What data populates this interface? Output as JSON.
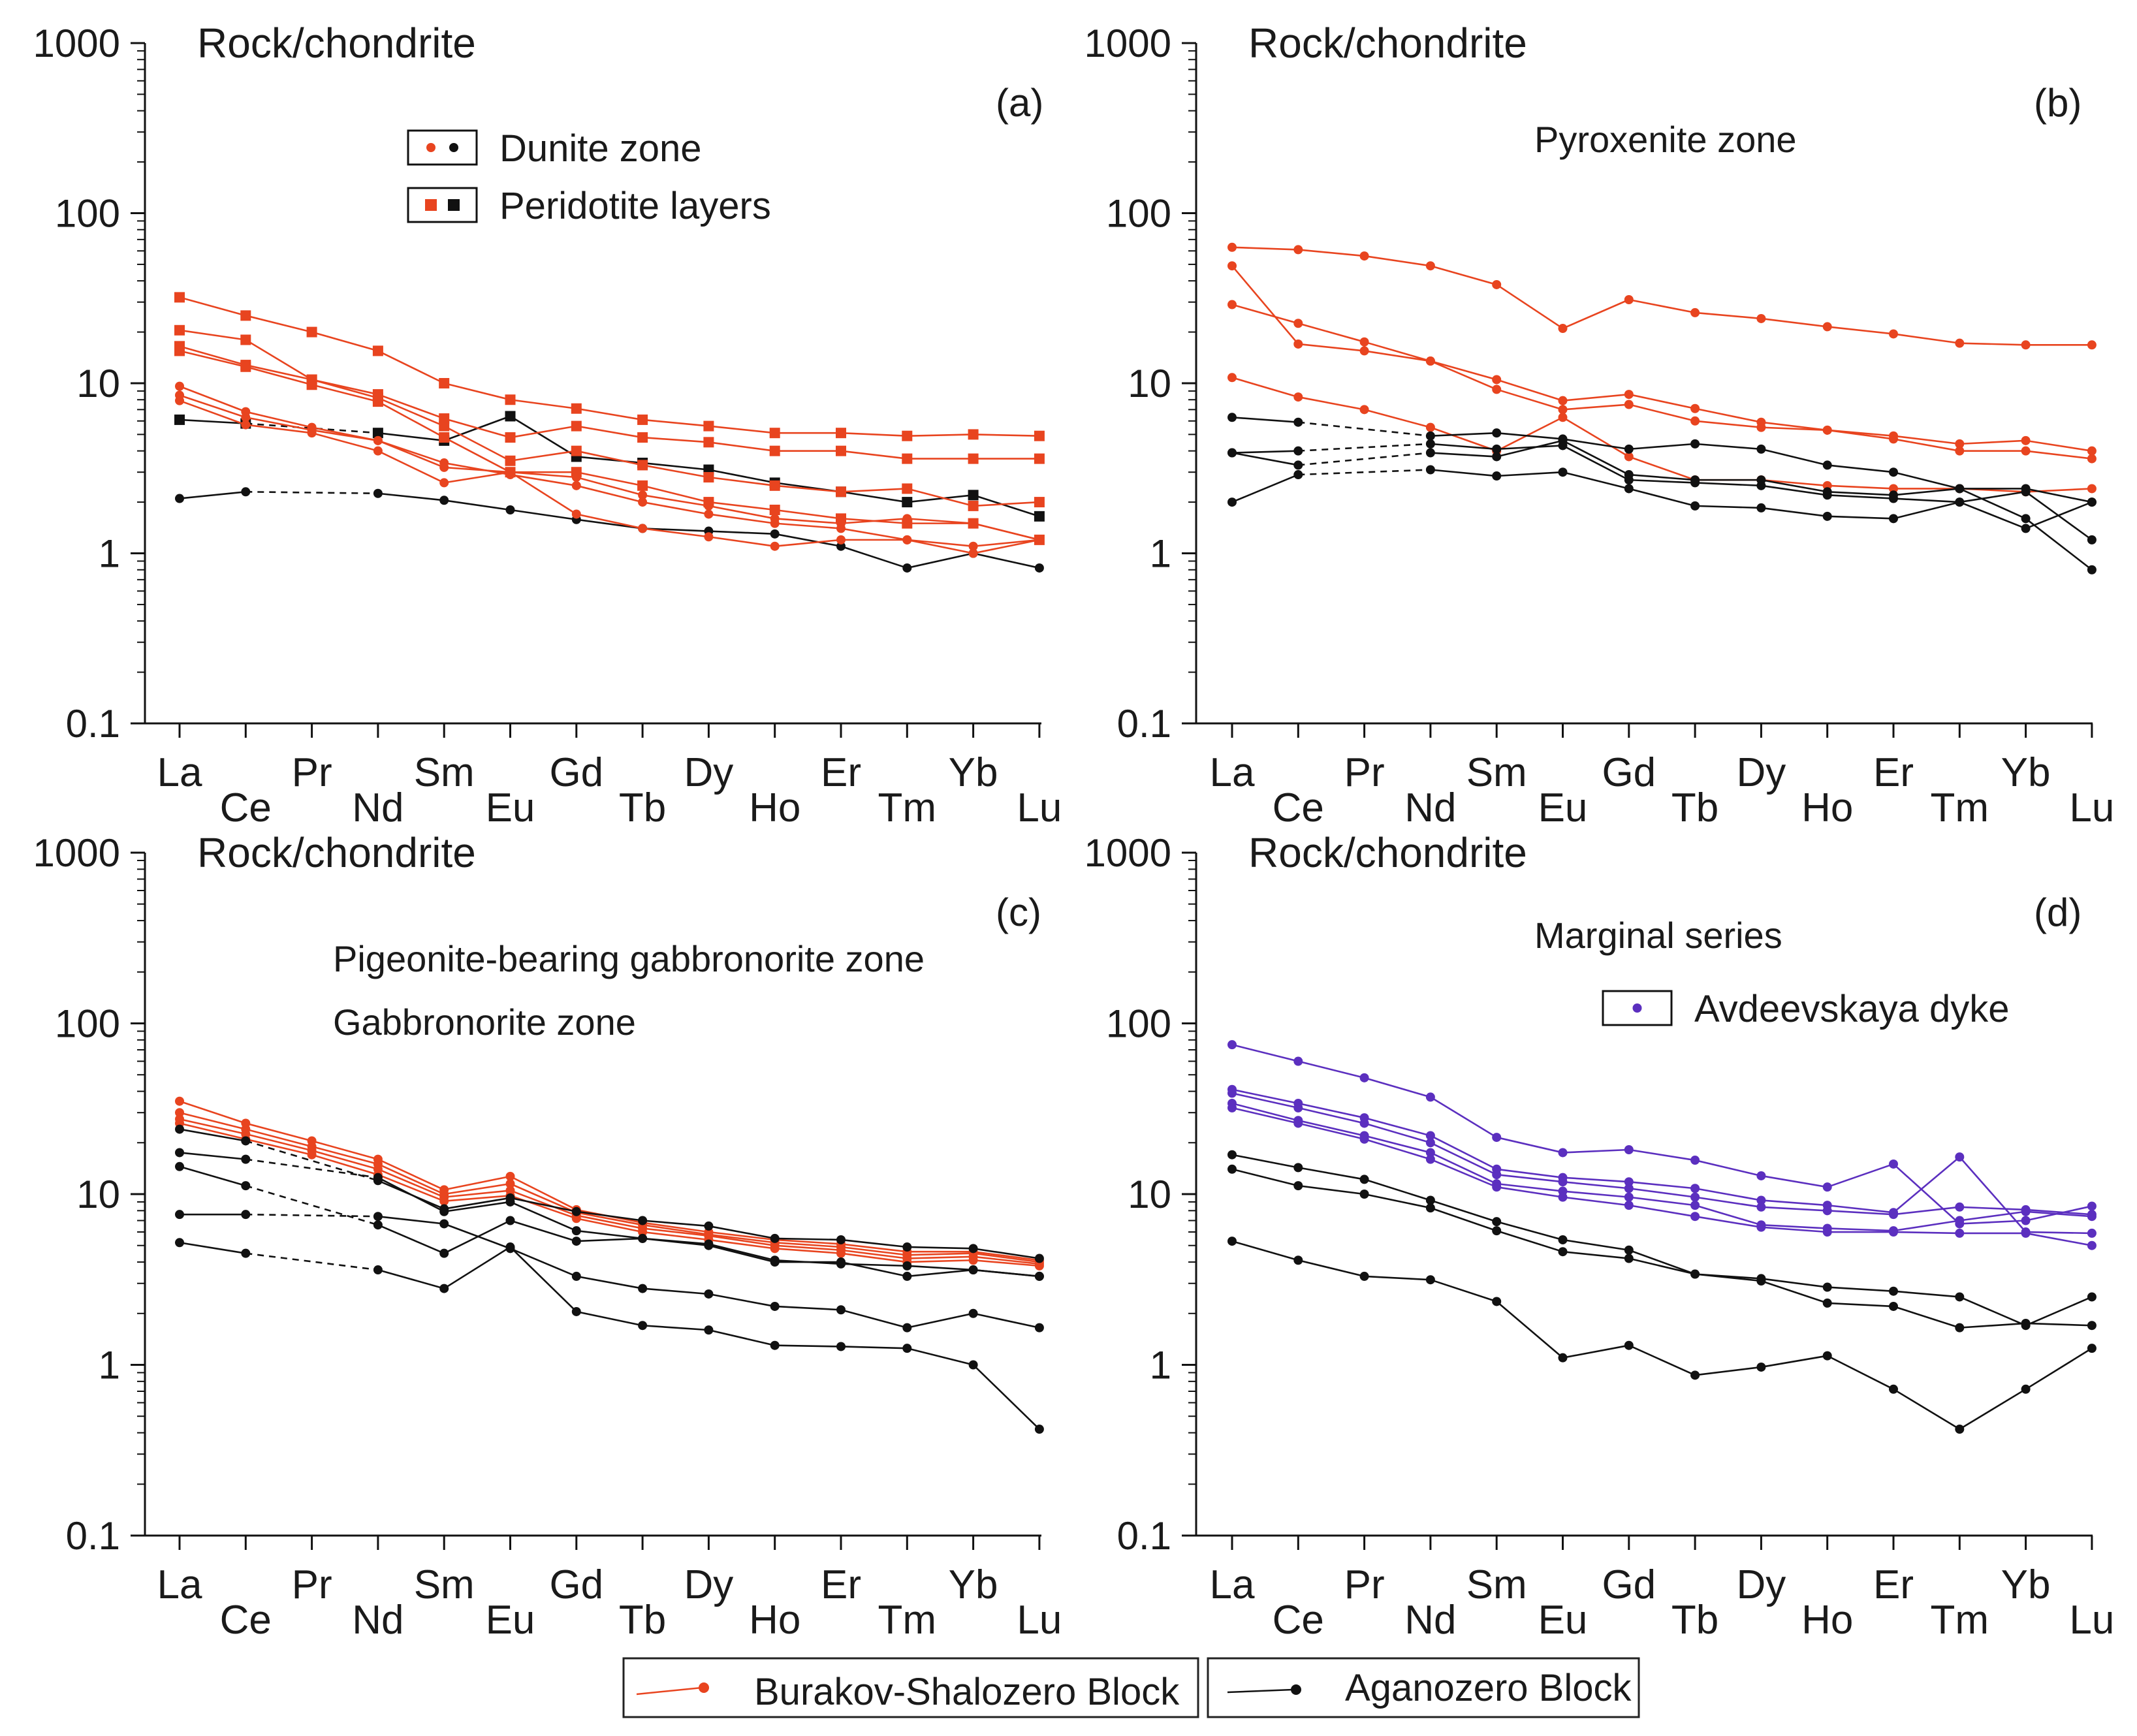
{
  "colors": {
    "burakov": "#e8441f",
    "aganozero": "#111111",
    "avdeevskaya": "#5b2fbf"
  },
  "bottom_legend": {
    "burakov": {
      "label": "Burakov-Shalozero Block",
      "color": "#e8441f"
    },
    "aganozero": {
      "label": "Aganozero Block",
      "color": "#111111"
    }
  },
  "chart_data": [
    {
      "id": "a",
      "type": "line",
      "yscale": "log",
      "ylim": [
        0.1,
        1000
      ],
      "yticks": [
        "0.1",
        "1",
        "10",
        "100",
        "1000"
      ],
      "ylabel": "Rock/chondrite",
      "panel_label": "(a)",
      "categories": [
        "La",
        "Ce",
        "Pr",
        "Nd",
        "Sm",
        "Eu",
        "Gd",
        "Tb",
        "Dy",
        "Ho",
        "Er",
        "Tm",
        "Yb",
        "Lu"
      ],
      "annotations": [],
      "legend": [
        {
          "label": "Dunite zone",
          "marker": "circle",
          "colors": [
            "#e8441f",
            "#111111"
          ]
        },
        {
          "label": "Peridotite layers",
          "marker": "square",
          "colors": [
            "#e8441f",
            "#111111"
          ]
        }
      ],
      "series": [
        {
          "block": "aganozero",
          "marker": "circle",
          "values": [
            2.1,
            2.3,
            null,
            2.25,
            2.05,
            1.8,
            1.58,
            1.4,
            1.35,
            1.3,
            1.1,
            0.82,
            1.0,
            0.82
          ]
        },
        {
          "block": "aganozero",
          "marker": "square",
          "values": [
            6.1,
            5.8,
            null,
            5.1,
            4.6,
            6.4,
            3.7,
            3.4,
            3.1,
            2.6,
            2.3,
            2.0,
            2.2,
            1.65
          ]
        },
        {
          "block": "burakov",
          "marker": "square",
          "values": [
            32,
            25,
            20,
            15.5,
            10,
            8,
            7.1,
            6.1,
            5.6,
            5.1,
            5.1,
            4.9,
            5.0,
            4.9
          ]
        },
        {
          "block": "burakov",
          "marker": "square",
          "values": [
            20.5,
            18,
            10.5,
            8.6,
            6.2,
            4.8,
            5.6,
            4.8,
            4.5,
            4.0,
            4.0,
            3.6,
            3.6,
            3.6
          ]
        },
        {
          "block": "burakov",
          "marker": "square",
          "values": [
            16.5,
            12.8,
            10.5,
            8.2,
            5.6,
            3.5,
            4.0,
            3.3,
            2.8,
            2.5,
            2.3,
            2.4,
            1.9,
            2.0
          ]
        },
        {
          "block": "burakov",
          "marker": "square",
          "values": [
            15.5,
            12.5,
            9.8,
            7.8,
            4.8,
            3.0,
            3.0,
            2.5,
            2.0,
            1.8,
            1.6,
            1.5,
            1.5,
            1.2
          ]
        },
        {
          "block": "burakov",
          "marker": "circle",
          "values": [
            9.6,
            6.8,
            5.5,
            4.6,
            3.2,
            3.0,
            2.8,
            2.2,
            1.9,
            1.6,
            1.5,
            1.6,
            1.5,
            1.2
          ]
        },
        {
          "block": "burakov",
          "marker": "circle",
          "values": [
            8.5,
            6.3,
            5.3,
            4.6,
            3.4,
            2.9,
            2.5,
            2.0,
            1.7,
            1.5,
            1.4,
            1.2,
            1.1,
            1.2
          ]
        },
        {
          "block": "burakov",
          "marker": "circle",
          "values": [
            7.9,
            5.7,
            5.1,
            4.0,
            2.6,
            3.0,
            1.7,
            1.4,
            1.25,
            1.1,
            1.2,
            1.2,
            1.0,
            1.2
          ]
        }
      ]
    },
    {
      "id": "b",
      "type": "line",
      "yscale": "log",
      "ylim": [
        0.1,
        1000
      ],
      "yticks": [
        "0.1",
        "1",
        "10",
        "100",
        "1000"
      ],
      "ylabel": "Rock/chondrite",
      "panel_label": "(b)",
      "categories": [
        "La",
        "Ce",
        "Pr",
        "Nd",
        "Sm",
        "Eu",
        "Gd",
        "Tb",
        "Dy",
        "Ho",
        "Er",
        "Tm",
        "Yb",
        "Lu"
      ],
      "annotations": [
        "Pyroxenite zone"
      ],
      "legend": [],
      "series": [
        {
          "block": "burakov",
          "marker": "circle",
          "values": [
            63,
            61,
            56,
            49,
            38,
            21,
            31,
            26,
            24,
            21.5,
            19.5,
            17.2,
            16.8,
            16.8
          ]
        },
        {
          "block": "burakov",
          "marker": "circle",
          "values": [
            49,
            17,
            15.5,
            13.5,
            10.5,
            7.9,
            8.6,
            7.1,
            5.9,
            5.3,
            4.9,
            4.4,
            4.6,
            4.0
          ]
        },
        {
          "block": "burakov",
          "marker": "circle",
          "values": [
            29,
            22.5,
            17.5,
            13.5,
            9.2,
            7.0,
            7.5,
            6.0,
            5.5,
            5.3,
            4.7,
            4.0,
            4.0,
            3.6
          ]
        },
        {
          "block": "burakov",
          "marker": "circle",
          "values": [
            10.8,
            8.3,
            7.0,
            5.5,
            4.0,
            6.3,
            3.7,
            2.7,
            2.7,
            2.5,
            2.4,
            2.4,
            2.3,
            2.4
          ]
        },
        {
          "block": "aganozero",
          "marker": "circle",
          "values": [
            6.3,
            5.9,
            null,
            4.9,
            5.1,
            4.7,
            4.1,
            4.4,
            4.1,
            3.3,
            3.0,
            2.4,
            2.4,
            2.0
          ]
        },
        {
          "block": "aganozero",
          "marker": "circle",
          "values": [
            3.9,
            4.0,
            null,
            4.4,
            4.1,
            4.3,
            2.7,
            2.6,
            2.5,
            2.2,
            2.1,
            2.0,
            2.3,
            1.2
          ]
        },
        {
          "block": "aganozero",
          "marker": "circle",
          "values": [
            3.9,
            3.3,
            null,
            3.9,
            3.7,
            4.6,
            2.9,
            2.7,
            2.7,
            2.3,
            2.2,
            2.4,
            1.6,
            0.8
          ]
        },
        {
          "block": "aganozero",
          "marker": "circle",
          "values": [
            2.0,
            2.9,
            null,
            3.1,
            2.85,
            3.0,
            2.4,
            1.9,
            1.85,
            1.65,
            1.6,
            2.0,
            1.4,
            2.0
          ]
        }
      ]
    },
    {
      "id": "c",
      "type": "line",
      "yscale": "log",
      "ylim": [
        0.1,
        1000
      ],
      "yticks": [
        "0.1",
        "1",
        "10",
        "100",
        "1000"
      ],
      "ylabel": "Rock/chondrite",
      "panel_label": "(c)",
      "categories": [
        "La",
        "Ce",
        "Pr",
        "Nd",
        "Sm",
        "Eu",
        "Gd",
        "Tb",
        "Dy",
        "Ho",
        "Er",
        "Tm",
        "Yb",
        "Lu"
      ],
      "annotations": [
        "Pigeonite-bearing gabbronorite zone",
        "Gabbronorite zone"
      ],
      "legend": [],
      "series": [
        {
          "block": "burakov",
          "marker": "circle",
          "values": [
            35,
            26,
            20.5,
            16,
            10.6,
            12.7,
            8.1,
            6.8,
            6.0,
            5.4,
            5.1,
            4.6,
            4.6,
            4.1
          ]
        },
        {
          "block": "burakov",
          "marker": "circle",
          "values": [
            30,
            24,
            19,
            15,
            10,
            11.5,
            7.8,
            6.6,
            5.8,
            5.2,
            4.9,
            4.4,
            4.5,
            4.0
          ]
        },
        {
          "block": "burakov",
          "marker": "circle",
          "values": [
            27.5,
            22.5,
            18,
            14,
            9.6,
            10.5,
            7.5,
            6.3,
            5.7,
            5.0,
            4.7,
            4.2,
            4.3,
            3.9
          ]
        },
        {
          "block": "burakov",
          "marker": "circle",
          "values": [
            26,
            21,
            17,
            13,
            9.1,
            9.8,
            7.2,
            6.0,
            5.4,
            4.8,
            4.5,
            4.0,
            4.1,
            3.8
          ]
        },
        {
          "block": "aganozero",
          "marker": "circle",
          "values": [
            24,
            20.5,
            null,
            12,
            8.2,
            9.5,
            7.9,
            7.0,
            6.5,
            5.5,
            5.4,
            4.9,
            4.8,
            4.2
          ]
        },
        {
          "block": "aganozero",
          "marker": "circle",
          "values": [
            17.5,
            16,
            null,
            12.5,
            7.9,
            9.0,
            6.1,
            5.5,
            5.0,
            4.0,
            4.0,
            3.3,
            3.6,
            3.3
          ]
        },
        {
          "block": "aganozero",
          "marker": "circle",
          "values": [
            14.5,
            11.2,
            null,
            6.6,
            4.5,
            7.0,
            5.3,
            5.5,
            5.1,
            4.1,
            3.9,
            3.8,
            3.6,
            3.3
          ]
        },
        {
          "block": "aganozero",
          "marker": "circle",
          "values": [
            7.6,
            7.6,
            null,
            7.4,
            6.7,
            4.8,
            3.3,
            2.8,
            2.6,
            2.2,
            2.1,
            1.65,
            2.0,
            1.65
          ]
        },
        {
          "block": "aganozero",
          "marker": "circle",
          "values": [
            5.2,
            4.5,
            null,
            3.6,
            2.8,
            4.9,
            2.05,
            1.7,
            1.6,
            1.3,
            1.28,
            1.25,
            1.0,
            0.42
          ]
        }
      ]
    },
    {
      "id": "d",
      "type": "line",
      "yscale": "log",
      "ylim": [
        0.1,
        1000
      ],
      "yticks": [
        "0.1",
        "1",
        "10",
        "100",
        "1000"
      ],
      "ylabel": "Rock/chondrite",
      "panel_label": "(d)",
      "categories": [
        "La",
        "Ce",
        "Pr",
        "Nd",
        "Sm",
        "Eu",
        "Gd",
        "Tb",
        "Dy",
        "Ho",
        "Er",
        "Tm",
        "Yb",
        "Lu"
      ],
      "annotations": [
        "Marginal series"
      ],
      "legend": [
        {
          "label": "Avdeevskaya dyke",
          "marker": "circle",
          "colors": [
            "#5b2fbf"
          ]
        }
      ],
      "series": [
        {
          "block": "avdeevskaya",
          "marker": "circle",
          "values": [
            75,
            60,
            48,
            37,
            21.5,
            17.5,
            18.2,
            15.8,
            12.8,
            11,
            15,
            6.7,
            7.0,
            8.5
          ]
        },
        {
          "block": "avdeevskaya",
          "marker": "circle",
          "values": [
            41,
            34,
            28,
            22,
            14,
            12.5,
            11.8,
            10.8,
            9.2,
            8.6,
            7.8,
            16.5,
            6.0,
            5.9
          ]
        },
        {
          "block": "avdeevskaya",
          "marker": "circle",
          "values": [
            39,
            32,
            26,
            20,
            13,
            11.8,
            10.8,
            9.6,
            8.4,
            8.0,
            7.6,
            8.4,
            8.1,
            7.6
          ]
        },
        {
          "block": "avdeevskaya",
          "marker": "circle",
          "values": [
            34,
            27,
            22,
            17.5,
            11.5,
            10.4,
            9.6,
            8.6,
            6.6,
            6.3,
            6.1,
            7.0,
            7.9,
            7.4
          ]
        },
        {
          "block": "avdeevskaya",
          "marker": "circle",
          "values": [
            32,
            26,
            21,
            16,
            11,
            9.6,
            8.6,
            7.4,
            6.4,
            6.0,
            6.0,
            5.9,
            5.9,
            5.0
          ]
        },
        {
          "block": "aganozero",
          "marker": "circle",
          "values": [
            17,
            14.3,
            12.2,
            9.2,
            6.9,
            5.4,
            4.7,
            3.4,
            3.2,
            2.85,
            2.7,
            2.5,
            1.7,
            2.5
          ]
        },
        {
          "block": "aganozero",
          "marker": "circle",
          "values": [
            14,
            11.2,
            10,
            8.3,
            6.1,
            4.6,
            4.2,
            3.4,
            3.1,
            2.3,
            2.2,
            1.65,
            1.75,
            1.7
          ]
        },
        {
          "block": "aganozero",
          "marker": "circle",
          "values": [
            5.3,
            4.1,
            3.3,
            3.15,
            2.35,
            1.1,
            1.3,
            0.87,
            0.97,
            1.13,
            0.72,
            0.42,
            0.72,
            1.25
          ]
        }
      ]
    }
  ]
}
